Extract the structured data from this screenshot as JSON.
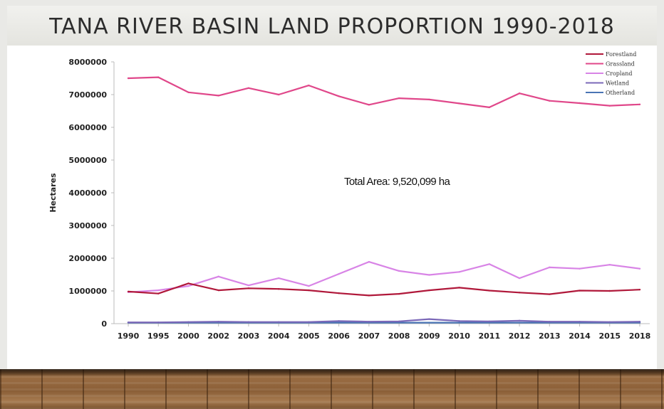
{
  "slide": {
    "title": "TANA RIVER BASIN LAND PROPORTION 1990-2018"
  },
  "colors": {
    "title_band": "#ebebe7",
    "panel": "#ffffff",
    "floor": "#8b5f37"
  },
  "chart_data": {
    "type": "line",
    "title": "",
    "xlabel": "",
    "ylabel": "Hectares",
    "x": [
      "1990",
      "1995",
      "2000",
      "2002",
      "2003",
      "2004",
      "2005",
      "2006",
      "2007",
      "2008",
      "2009",
      "2010",
      "2011",
      "2012",
      "2013",
      "2014",
      "2015",
      "2018"
    ],
    "ylim": [
      0,
      8000000
    ],
    "yticks": [
      "0",
      "1000000",
      "2000000",
      "3000000",
      "4000000",
      "5000000",
      "6000000",
      "7000000",
      "8000000"
    ],
    "grid": false,
    "legend_position": "top-right",
    "annotation": "Total Area: 9,520,099 ha",
    "series": [
      {
        "name": "Forestland",
        "color": "#b0183a",
        "values": [
          980000,
          920000,
          1230000,
          1020000,
          1080000,
          1060000,
          1020000,
          930000,
          860000,
          910000,
          1020000,
          1100000,
          1010000,
          950000,
          900000,
          1010000,
          1000000,
          1040000
        ]
      },
      {
        "name": "Grassland",
        "color": "#e0478a",
        "values": [
          7500000,
          7530000,
          7070000,
          6970000,
          7200000,
          7000000,
          7280000,
          6950000,
          6690000,
          6890000,
          6850000,
          6730000,
          6610000,
          7040000,
          6810000,
          6740000,
          6660000,
          6700000
        ]
      },
      {
        "name": "Cropland",
        "color": "#d884e6",
        "values": [
          960000,
          1020000,
          1150000,
          1440000,
          1170000,
          1390000,
          1150000,
          1520000,
          1890000,
          1610000,
          1490000,
          1580000,
          1820000,
          1390000,
          1720000,
          1680000,
          1800000,
          1680000
        ]
      },
      {
        "name": "Wetland",
        "color": "#7b68b8",
        "values": [
          40000,
          40000,
          50000,
          60000,
          50000,
          50000,
          50000,
          80000,
          60000,
          70000,
          140000,
          80000,
          70000,
          90000,
          60000,
          60000,
          50000,
          60000
        ]
      },
      {
        "name": "Otherland",
        "color": "#4a74b4",
        "values": [
          30000,
          30000,
          30000,
          30000,
          30000,
          30000,
          30000,
          30000,
          30000,
          30000,
          30000,
          30000,
          30000,
          30000,
          30000,
          30000,
          30000,
          30000
        ]
      }
    ]
  }
}
